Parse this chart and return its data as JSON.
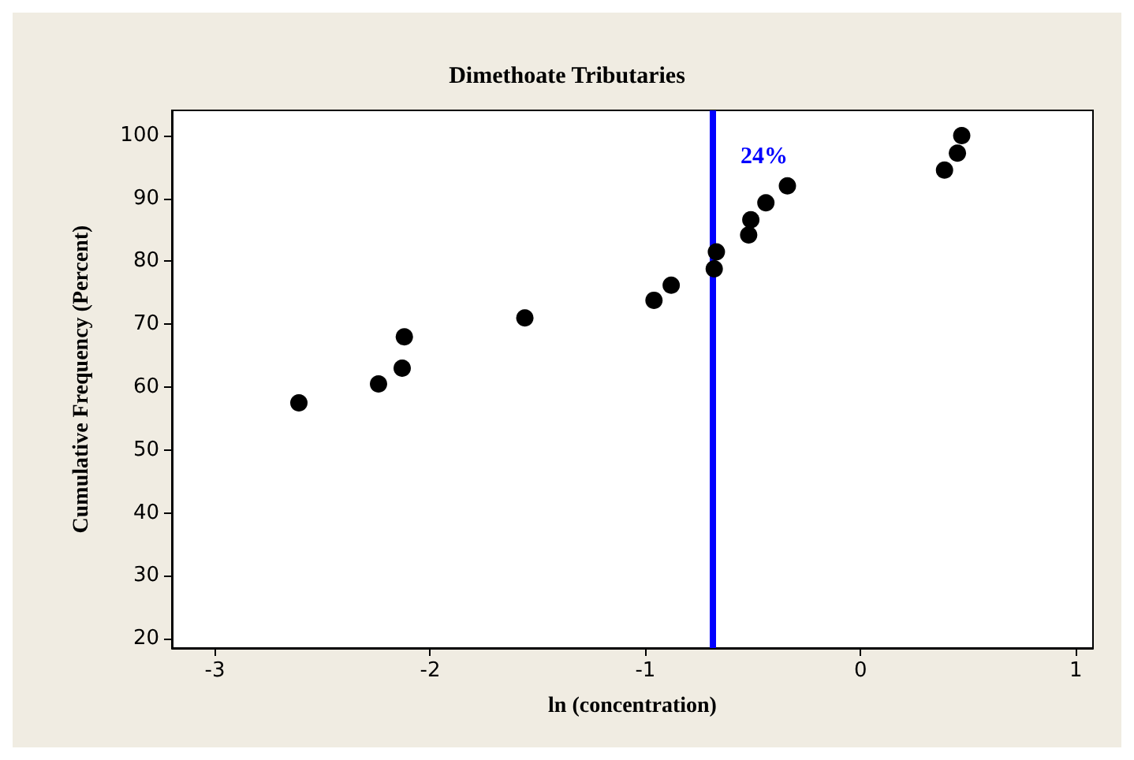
{
  "chart_data": {
    "type": "scatter",
    "title": "Dimethoate Tributaries",
    "xlabel": "ln (concentration)",
    "ylabel": "Cumulative Frequency (Percent)",
    "x": [
      -2.61,
      -2.24,
      -2.13,
      -2.12,
      -1.56,
      -0.96,
      -0.88,
      -0.68,
      -0.67,
      -0.52,
      -0.51,
      -0.44,
      -0.34,
      0.39,
      0.45,
      0.47
    ],
    "values": [
      57.5,
      60.5,
      63,
      68,
      71,
      73.8,
      76.2,
      78.8,
      81.5,
      84.2,
      86.6,
      89.3,
      92,
      94.5,
      97.2,
      100
    ],
    "color": "#000000",
    "marker": "circle",
    "xlim": [
      -3.2,
      1.08
    ],
    "xticks": [
      -3,
      -2,
      -1,
      0,
      1
    ],
    "ylim": [
      18.5,
      104
    ],
    "yticks": [
      20,
      30,
      40,
      50,
      60,
      70,
      80,
      90,
      100
    ],
    "grid": false,
    "ref_lines": [
      {
        "axis": "x",
        "value": -0.69,
        "color": "#0000ff",
        "line_style": "solid"
      }
    ],
    "annotations": [
      "24%"
    ]
  }
}
